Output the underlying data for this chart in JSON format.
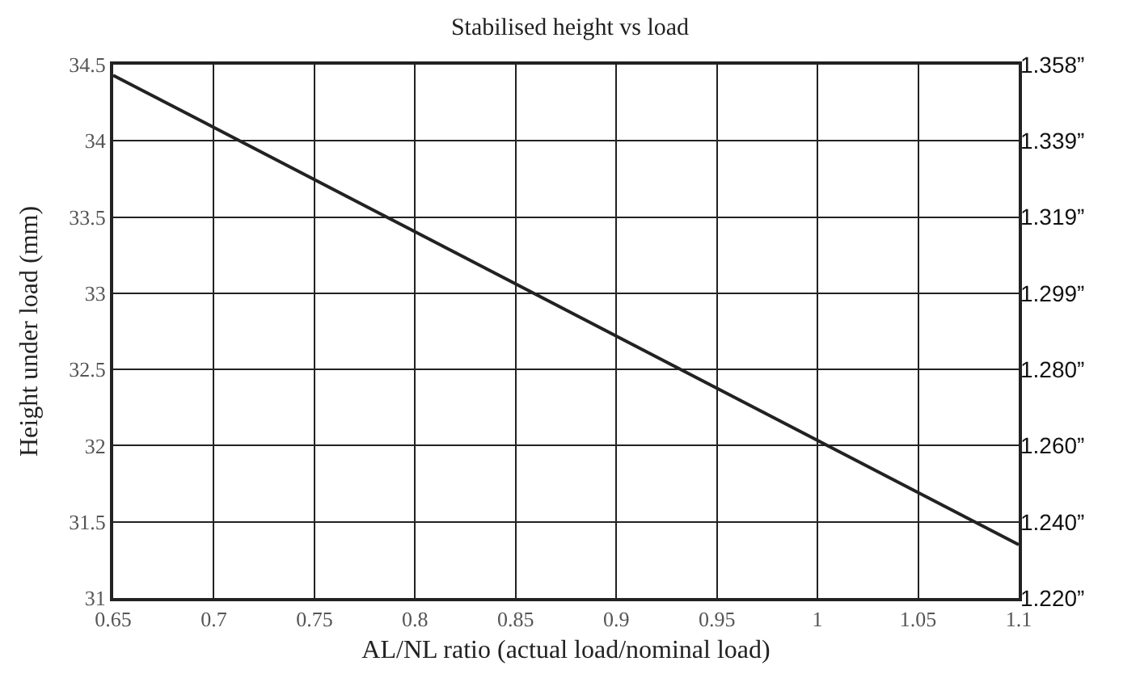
{
  "chart_data": {
    "type": "line",
    "title": "Stabilised height vs load",
    "xlabel": "AL/NL ratio (actual load/nominal load)",
    "ylabel": "Height under load (mm)",
    "x": [
      0.65,
      1.1
    ],
    "series": [
      {
        "color": "#222222",
        "values": [
          34.43,
          31.35
        ]
      }
    ],
    "xlim": [
      0.65,
      1.1
    ],
    "xticks": [
      0.65,
      0.7,
      0.75,
      0.8,
      0.85,
      0.9,
      0.95,
      1,
      1.05,
      1.1
    ],
    "ylim": [
      31,
      34.5
    ],
    "yticks": [
      31,
      31.5,
      32,
      32.5,
      33,
      33.5,
      34,
      34.5
    ],
    "y2lim": [
      1.22047,
      1.35827
    ],
    "y2ticks": [
      {
        "value": 1.22047,
        "label": "1.220”"
      },
      {
        "value": 1.24016,
        "label": "1.240”"
      },
      {
        "value": 1.25984,
        "label": "1.260”"
      },
      {
        "value": 1.27953,
        "label": "1.280”"
      },
      {
        "value": 1.29921,
        "label": "1.299”"
      },
      {
        "value": 1.3189,
        "label": "1.319”"
      },
      {
        "value": 1.33858,
        "label": "1.339”"
      },
      {
        "value": 1.35827,
        "label": "1.358”"
      }
    ],
    "grid": true,
    "marker": "none",
    "line_style": "solid"
  }
}
